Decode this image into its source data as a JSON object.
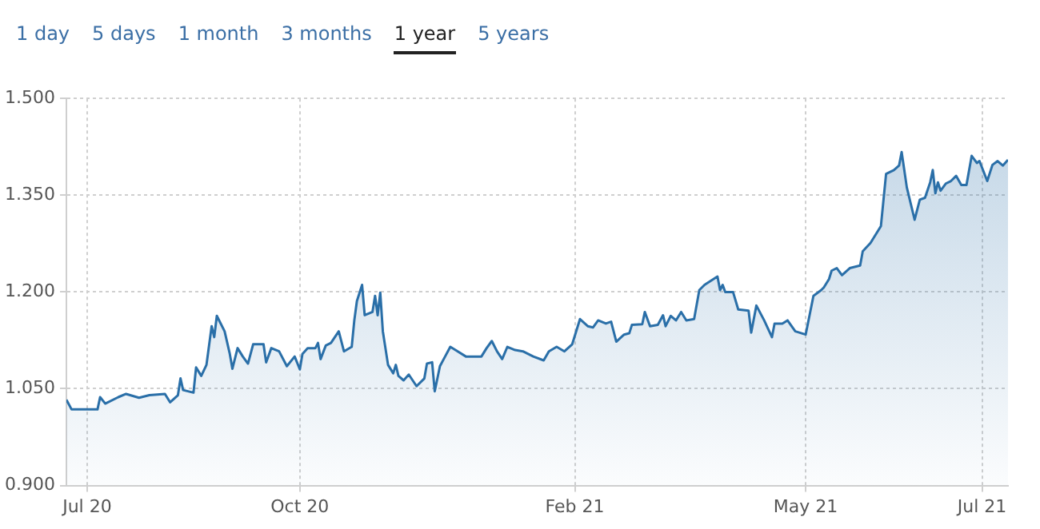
{
  "chart_data": {
    "type": "area",
    "color": "#2a6fa8",
    "annotations": [
      "1 day",
      "5 days",
      "1 month",
      "3 months",
      "1 year",
      "5 years"
    ],
    "x": [
      "2020-07-20",
      "2020-07-22",
      "2020-08-01",
      "2020-08-02",
      "2020-08-04",
      "2020-08-09",
      "2020-08-12",
      "2020-08-17",
      "2020-08-21",
      "2020-08-27",
      "2020-08-29",
      "2020-09-01",
      "2020-09-02",
      "2020-09-03",
      "2020-09-07",
      "2020-09-08",
      "2020-09-10",
      "2020-09-12",
      "2020-09-14",
      "2020-09-15",
      "2020-09-16",
      "2020-09-19",
      "2020-09-21",
      "2020-09-22",
      "2020-09-24",
      "2020-09-26",
      "2020-09-28",
      "2020-09-30",
      "2020-10-04",
      "2020-10-05",
      "2020-10-07",
      "2020-10-10",
      "2020-10-13",
      "2020-10-16",
      "2020-10-18",
      "2020-10-19",
      "2020-10-21",
      "2020-10-24",
      "2020-10-25",
      "2020-10-26",
      "2020-10-28",
      "2020-10-30",
      "2020-11-02",
      "2020-11-04",
      "2020-11-07",
      "2020-11-08",
      "2020-11-09",
      "2020-11-11",
      "2020-11-12",
      "2020-11-15",
      "2020-11-16",
      "2020-11-17",
      "2020-11-18",
      "2020-11-19",
      "2020-11-21",
      "2020-11-23",
      "2020-11-24",
      "2020-11-25",
      "2020-11-27",
      "2020-11-29",
      "2020-12-02",
      "2020-12-05",
      "2020-12-06",
      "2020-12-08",
      "2020-12-09",
      "2020-12-11",
      "2020-12-13",
      "2020-12-15",
      "2020-12-17",
      "2020-12-21",
      "2020-12-27",
      "2020-12-29",
      "2020-12-31",
      "2021-01-02",
      "2021-01-04",
      "2021-01-06",
      "2021-01-09",
      "2021-01-12",
      "2021-01-16",
      "2021-01-20",
      "2021-01-22",
      "2021-01-25",
      "2021-01-28",
      "2021-01-31",
      "2021-02-03",
      "2021-02-06",
      "2021-02-08",
      "2021-02-10",
      "2021-02-13",
      "2021-02-15",
      "2021-02-17",
      "2021-02-20",
      "2021-02-22",
      "2021-02-23",
      "2021-02-27",
      "2021-02-28",
      "2021-03-02",
      "2021-03-05",
      "2021-03-07",
      "2021-03-08",
      "2021-03-10",
      "2021-03-12",
      "2021-03-14",
      "2021-03-16",
      "2021-03-19",
      "2021-03-21",
      "2021-03-23",
      "2021-03-28",
      "2021-03-29",
      "2021-03-30",
      "2021-03-31",
      "2021-04-03",
      "2021-04-05",
      "2021-04-09",
      "2021-04-10",
      "2021-04-12",
      "2021-04-15",
      "2021-04-18",
      "2021-04-19",
      "2021-04-22",
      "2021-04-24",
      "2021-04-27",
      "2021-05-01",
      "2021-05-04",
      "2021-05-07",
      "2021-05-08",
      "2021-05-10",
      "2021-05-11",
      "2021-05-13",
      "2021-05-15",
      "2021-05-18",
      "2021-05-22",
      "2021-05-23",
      "2021-05-26",
      "2021-05-28",
      "2021-05-30",
      "2021-06-01",
      "2021-06-04",
      "2021-06-06",
      "2021-06-07",
      "2021-06-09",
      "2021-06-12",
      "2021-06-14",
      "2021-06-16",
      "2021-06-18",
      "2021-06-19",
      "2021-06-20",
      "2021-06-21",
      "2021-06-22",
      "2021-06-24",
      "2021-06-26",
      "2021-06-28",
      "2021-06-30",
      "2021-07-02",
      "2021-07-04",
      "2021-07-06",
      "2021-07-07",
      "2021-07-10",
      "2021-07-12",
      "2021-07-14",
      "2021-07-16",
      "2021-07-18"
    ],
    "values": [
      1.033,
      1.018,
      1.018,
      1.037,
      1.027,
      1.037,
      1.042,
      1.036,
      1.04,
      1.042,
      1.029,
      1.04,
      1.066,
      1.048,
      1.044,
      1.083,
      1.07,
      1.087,
      1.147,
      1.13,
      1.163,
      1.139,
      1.104,
      1.081,
      1.113,
      1.1,
      1.089,
      1.119,
      1.119,
      1.091,
      1.113,
      1.108,
      1.085,
      1.1,
      1.08,
      1.104,
      1.113,
      1.113,
      1.121,
      1.096,
      1.117,
      1.121,
      1.139,
      1.108,
      1.115,
      1.156,
      1.186,
      1.211,
      1.164,
      1.169,
      1.194,
      1.164,
      1.199,
      1.139,
      1.087,
      1.074,
      1.087,
      1.07,
      1.063,
      1.072,
      1.054,
      1.066,
      1.089,
      1.091,
      1.046,
      1.085,
      1.1,
      1.115,
      1.11,
      1.1,
      1.1,
      1.113,
      1.124,
      1.108,
      1.096,
      1.115,
      1.11,
      1.108,
      1.1,
      1.094,
      1.108,
      1.115,
      1.108,
      1.119,
      1.158,
      1.147,
      1.145,
      1.156,
      1.151,
      1.154,
      1.123,
      1.134,
      1.136,
      1.149,
      1.15,
      1.169,
      1.147,
      1.149,
      1.164,
      1.147,
      1.163,
      1.156,
      1.169,
      1.156,
      1.158,
      1.203,
      1.211,
      1.224,
      1.203,
      1.211,
      1.2,
      1.2,
      1.173,
      1.171,
      1.137,
      1.179,
      1.156,
      1.13,
      1.151,
      1.151,
      1.156,
      1.139,
      1.134,
      1.194,
      1.203,
      1.207,
      1.22,
      1.233,
      1.237,
      1.226,
      1.237,
      1.241,
      1.263,
      1.276,
      1.289,
      1.302,
      1.383,
      1.389,
      1.396,
      1.417,
      1.362,
      1.312,
      1.343,
      1.346,
      1.37,
      1.389,
      1.353,
      1.37,
      1.357,
      1.368,
      1.372,
      1.38,
      1.366,
      1.366,
      1.411,
      1.4,
      1.403,
      1.372,
      1.397,
      1.403,
      1.396,
      1.405
    ],
    "xlim": [
      "2020-07-20",
      "2021-07-18"
    ],
    "xticks": [
      {
        "value": "2020-07-28",
        "label": "Jul 20"
      },
      {
        "value": "2020-10-18",
        "label": "Oct 20"
      },
      {
        "value": "2021-02-01",
        "label": "Feb 21"
      },
      {
        "value": "2021-05-01",
        "label": "May 21"
      },
      {
        "value": "2021-07-08",
        "label": "Jul 21"
      }
    ],
    "ylim": [
      0.9,
      1.5
    ],
    "yticks": [
      {
        "value": 0.9,
        "label": "0.900"
      },
      {
        "value": 1.05,
        "label": "1.050"
      },
      {
        "value": 1.2,
        "label": "1.200"
      },
      {
        "value": 1.35,
        "label": "1.350"
      },
      {
        "value": 1.5,
        "label": "1.500"
      }
    ],
    "grid": true,
    "marker": "none",
    "line_style": "solid",
    "legend": false
  }
}
